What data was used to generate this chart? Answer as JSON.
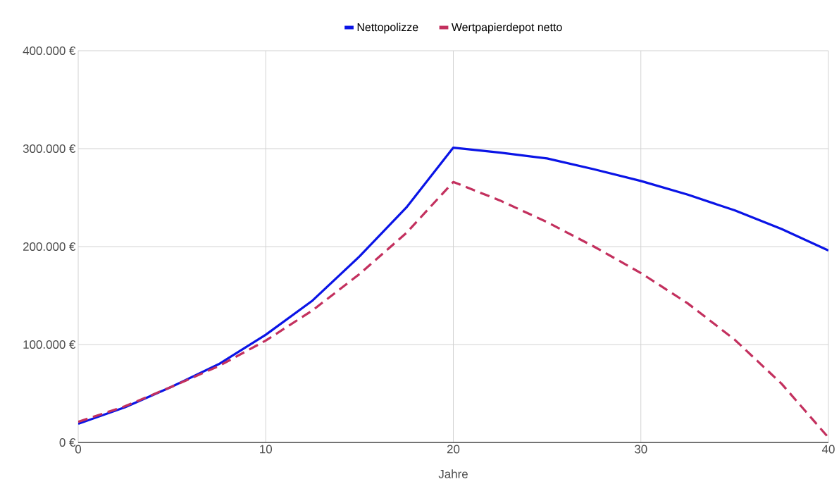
{
  "chart_data": {
    "type": "line",
    "xlabel": "Jahre",
    "legend": "top",
    "series": [
      {
        "name": "Nettopolizze",
        "color": "#0a14e6",
        "line_style": "solid",
        "x": [
          0,
          2.5,
          5,
          7.5,
          10,
          12.5,
          15,
          17.5,
          20,
          22.5,
          25,
          27.5,
          30,
          32.5,
          35,
          37.5,
          40
        ],
        "values": [
          19000,
          36000,
          57000,
          80000,
          110000,
          145000,
          190000,
          240000,
          301000,
          296000,
          290000,
          279000,
          267000,
          253000,
          237000,
          218000,
          196000
        ]
      },
      {
        "name": "Wertpapierdepot netto",
        "color": "#c3305e",
        "line_style": "dashed",
        "x": [
          0,
          2.5,
          5,
          7.5,
          10,
          12.5,
          15,
          17.5,
          20,
          22.5,
          25,
          27.5,
          30,
          32.5,
          35,
          37.5,
          40
        ],
        "values": [
          21000,
          37000,
          57000,
          78000,
          104000,
          135000,
          172000,
          214000,
          266000,
          247000,
          225000,
          200000,
          173000,
          142000,
          105000,
          60000,
          5000
        ]
      }
    ],
    "xlim": [
      0,
      40
    ],
    "xticks": [
      0,
      10,
      20,
      30,
      40
    ],
    "ylim": [
      0,
      400000
    ],
    "yticks": [
      {
        "value": 0,
        "label": "0 €"
      },
      {
        "value": 100000,
        "label": "100.000 €"
      },
      {
        "value": 200000,
        "label": "200.000 €"
      },
      {
        "value": 300000,
        "label": "300.000 €"
      },
      {
        "value": 400000,
        "label": "400.000 €"
      }
    ],
    "grid": true
  }
}
